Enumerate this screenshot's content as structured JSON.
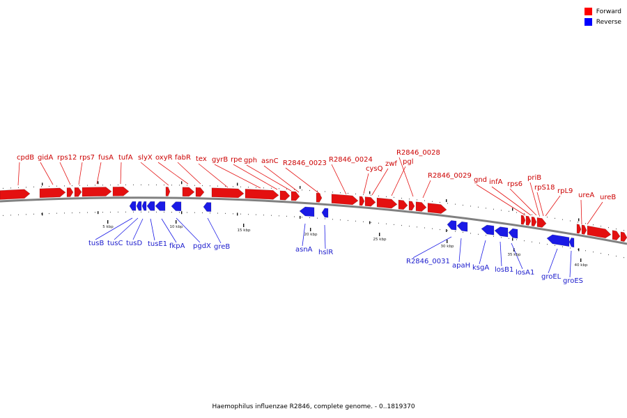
{
  "legend": [
    {
      "label": "Forward",
      "color": "#ff0000"
    },
    {
      "label": "Reverse",
      "color": "#0000ff"
    }
  ],
  "footer": "Haemophilus influenzae R2846, complete genome. - 0..1819370",
  "colors": {
    "forward": "#e41010",
    "reverse": "#1a1ae6",
    "forward_label": "#cc0000",
    "reverse_label": "#1a1acc",
    "backbone": "#808080"
  },
  "scale_ticks": [
    "5 kbp",
    "10 kbp",
    "15 kbp",
    "20 kbp",
    "25 kbp",
    "30 kbp",
    "35 kbp",
    "40 kbp"
  ],
  "forward_genes": [
    "cpdB",
    "gidA",
    "rps12",
    "rps7",
    "fusA",
    "tufA",
    "slyX",
    "oxyR",
    "fabR",
    "tex",
    "gyrB",
    "rpe",
    "gph",
    "asnC",
    "R2846_0023",
    "R2846_0024",
    "cysQ",
    "zwf",
    "pgl",
    "R2846_0028",
    "R2846_0029",
    "gnd",
    "infA",
    "rps6",
    "priB",
    "rpS18",
    "rpL9",
    "ureA",
    "ureB"
  ],
  "reverse_genes": [
    "tusB",
    "tusC",
    "tusD",
    "tusE1",
    "fkpA",
    "pgdX",
    "greB",
    "asnA",
    "hslR",
    "R2846_0031",
    "apaH",
    "ksgA",
    "losB1",
    "losA1",
    "groEL",
    "groES"
  ]
}
